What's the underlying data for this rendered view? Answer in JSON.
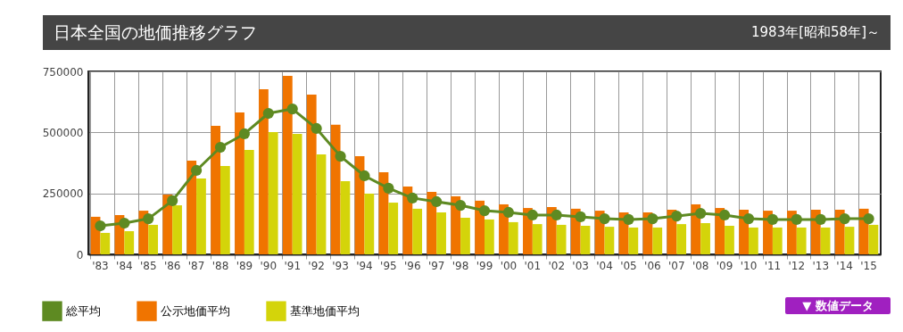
{
  "chart_data": {
    "type": "bar",
    "title": "日本全国の地価推移グラフ",
    "subtitle": "1983年[昭和58年]～",
    "categories": [
      "'83",
      "'84",
      "'85",
      "'86",
      "'87",
      "'88",
      "'89",
      "'90",
      "'91",
      "'92",
      "'93",
      "'94",
      "'95",
      "'96",
      "'97",
      "'98",
      "'99",
      "'00",
      "'01",
      "'02",
      "'03",
      "'04",
      "'05",
      "'06",
      "'07",
      "'08",
      "'09",
      "'10",
      "'11",
      "'12",
      "'13",
      "'14",
      "'15"
    ],
    "series": [
      {
        "name": "総平均",
        "type": "line",
        "color": "#5e8a22",
        "values": [
          117000,
          128000,
          146000,
          220000,
          344000,
          439000,
          494000,
          578000,
          596000,
          516000,
          402000,
          322000,
          271000,
          231000,
          216000,
          201000,
          179000,
          172000,
          161000,
          161000,
          154000,
          146000,
          143000,
          146000,
          157000,
          168000,
          161000,
          146000,
          143000,
          143000,
          143000,
          146000,
          146000
        ]
      },
      {
        "name": "公示地価平均",
        "color": "#f07400",
        "values": [
          154000,
          161000,
          179000,
          245000,
          384000,
          527000,
          582000,
          677000,
          732000,
          655000,
          531000,
          402000,
          337000,
          278000,
          256000,
          238000,
          220000,
          205000,
          190000,
          194000,
          187000,
          179000,
          172000,
          172000,
          183000,
          205000,
          190000,
          183000,
          179000,
          179000,
          183000,
          183000,
          187000
        ]
      },
      {
        "name": "基準地価平均",
        "color": "#d4d40a",
        "values": [
          88000,
          95000,
          121000,
          201000,
          311000,
          362000,
          428000,
          501000,
          494000,
          410000,
          300000,
          249000,
          212000,
          187000,
          172000,
          150000,
          143000,
          132000,
          124000,
          121000,
          117000,
          113000,
          110000,
          110000,
          124000,
          128000,
          117000,
          110000,
          110000,
          110000,
          110000,
          113000,
          121000
        ]
      }
    ],
    "ylim": [
      0,
      750000
    ],
    "yticks": [
      0,
      250000,
      500000,
      750000
    ],
    "grid": true,
    "legend": "bottom left",
    "marker": "circle",
    "annotations": [
      "▼ 数値データ"
    ]
  }
}
